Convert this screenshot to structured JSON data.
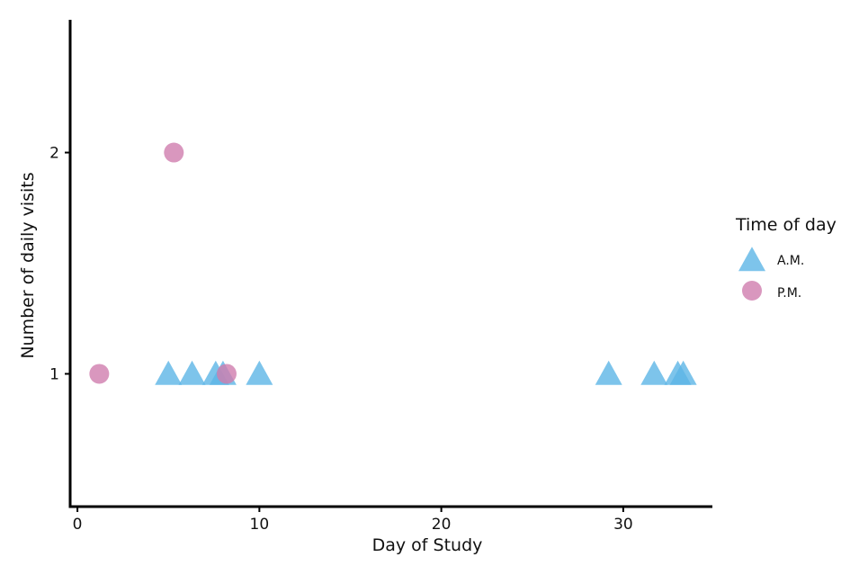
{
  "chart_data": {
    "type": "scatter",
    "xlabel": "Day of Study",
    "ylabel": "Number of daily visits",
    "xlim": [
      -0.4,
      34.9
    ],
    "ylim": [
      0.4,
      2.6
    ],
    "xticks": [
      0,
      10,
      20,
      30
    ],
    "yticks": [
      1,
      2
    ],
    "grid": false,
    "legend": {
      "title": "Time of day",
      "placement": "right"
    },
    "series": [
      {
        "name": "A.M.",
        "marker": "triangle",
        "color": "#5DB5E6",
        "points": [
          {
            "x": 5.0,
            "y": 1
          },
          {
            "x": 6.3,
            "y": 1
          },
          {
            "x": 7.6,
            "y": 1
          },
          {
            "x": 8.0,
            "y": 1
          },
          {
            "x": 10.0,
            "y": 1
          },
          {
            "x": 29.2,
            "y": 1
          },
          {
            "x": 31.7,
            "y": 1
          },
          {
            "x": 33.0,
            "y": 1
          },
          {
            "x": 33.3,
            "y": 1
          }
        ]
      },
      {
        "name": "P.M.",
        "marker": "circle",
        "color": "#CF7DAE",
        "points": [
          {
            "x": 1.2,
            "y": 1
          },
          {
            "x": 5.3,
            "y": 2
          },
          {
            "x": 8.2,
            "y": 1
          }
        ]
      }
    ]
  }
}
